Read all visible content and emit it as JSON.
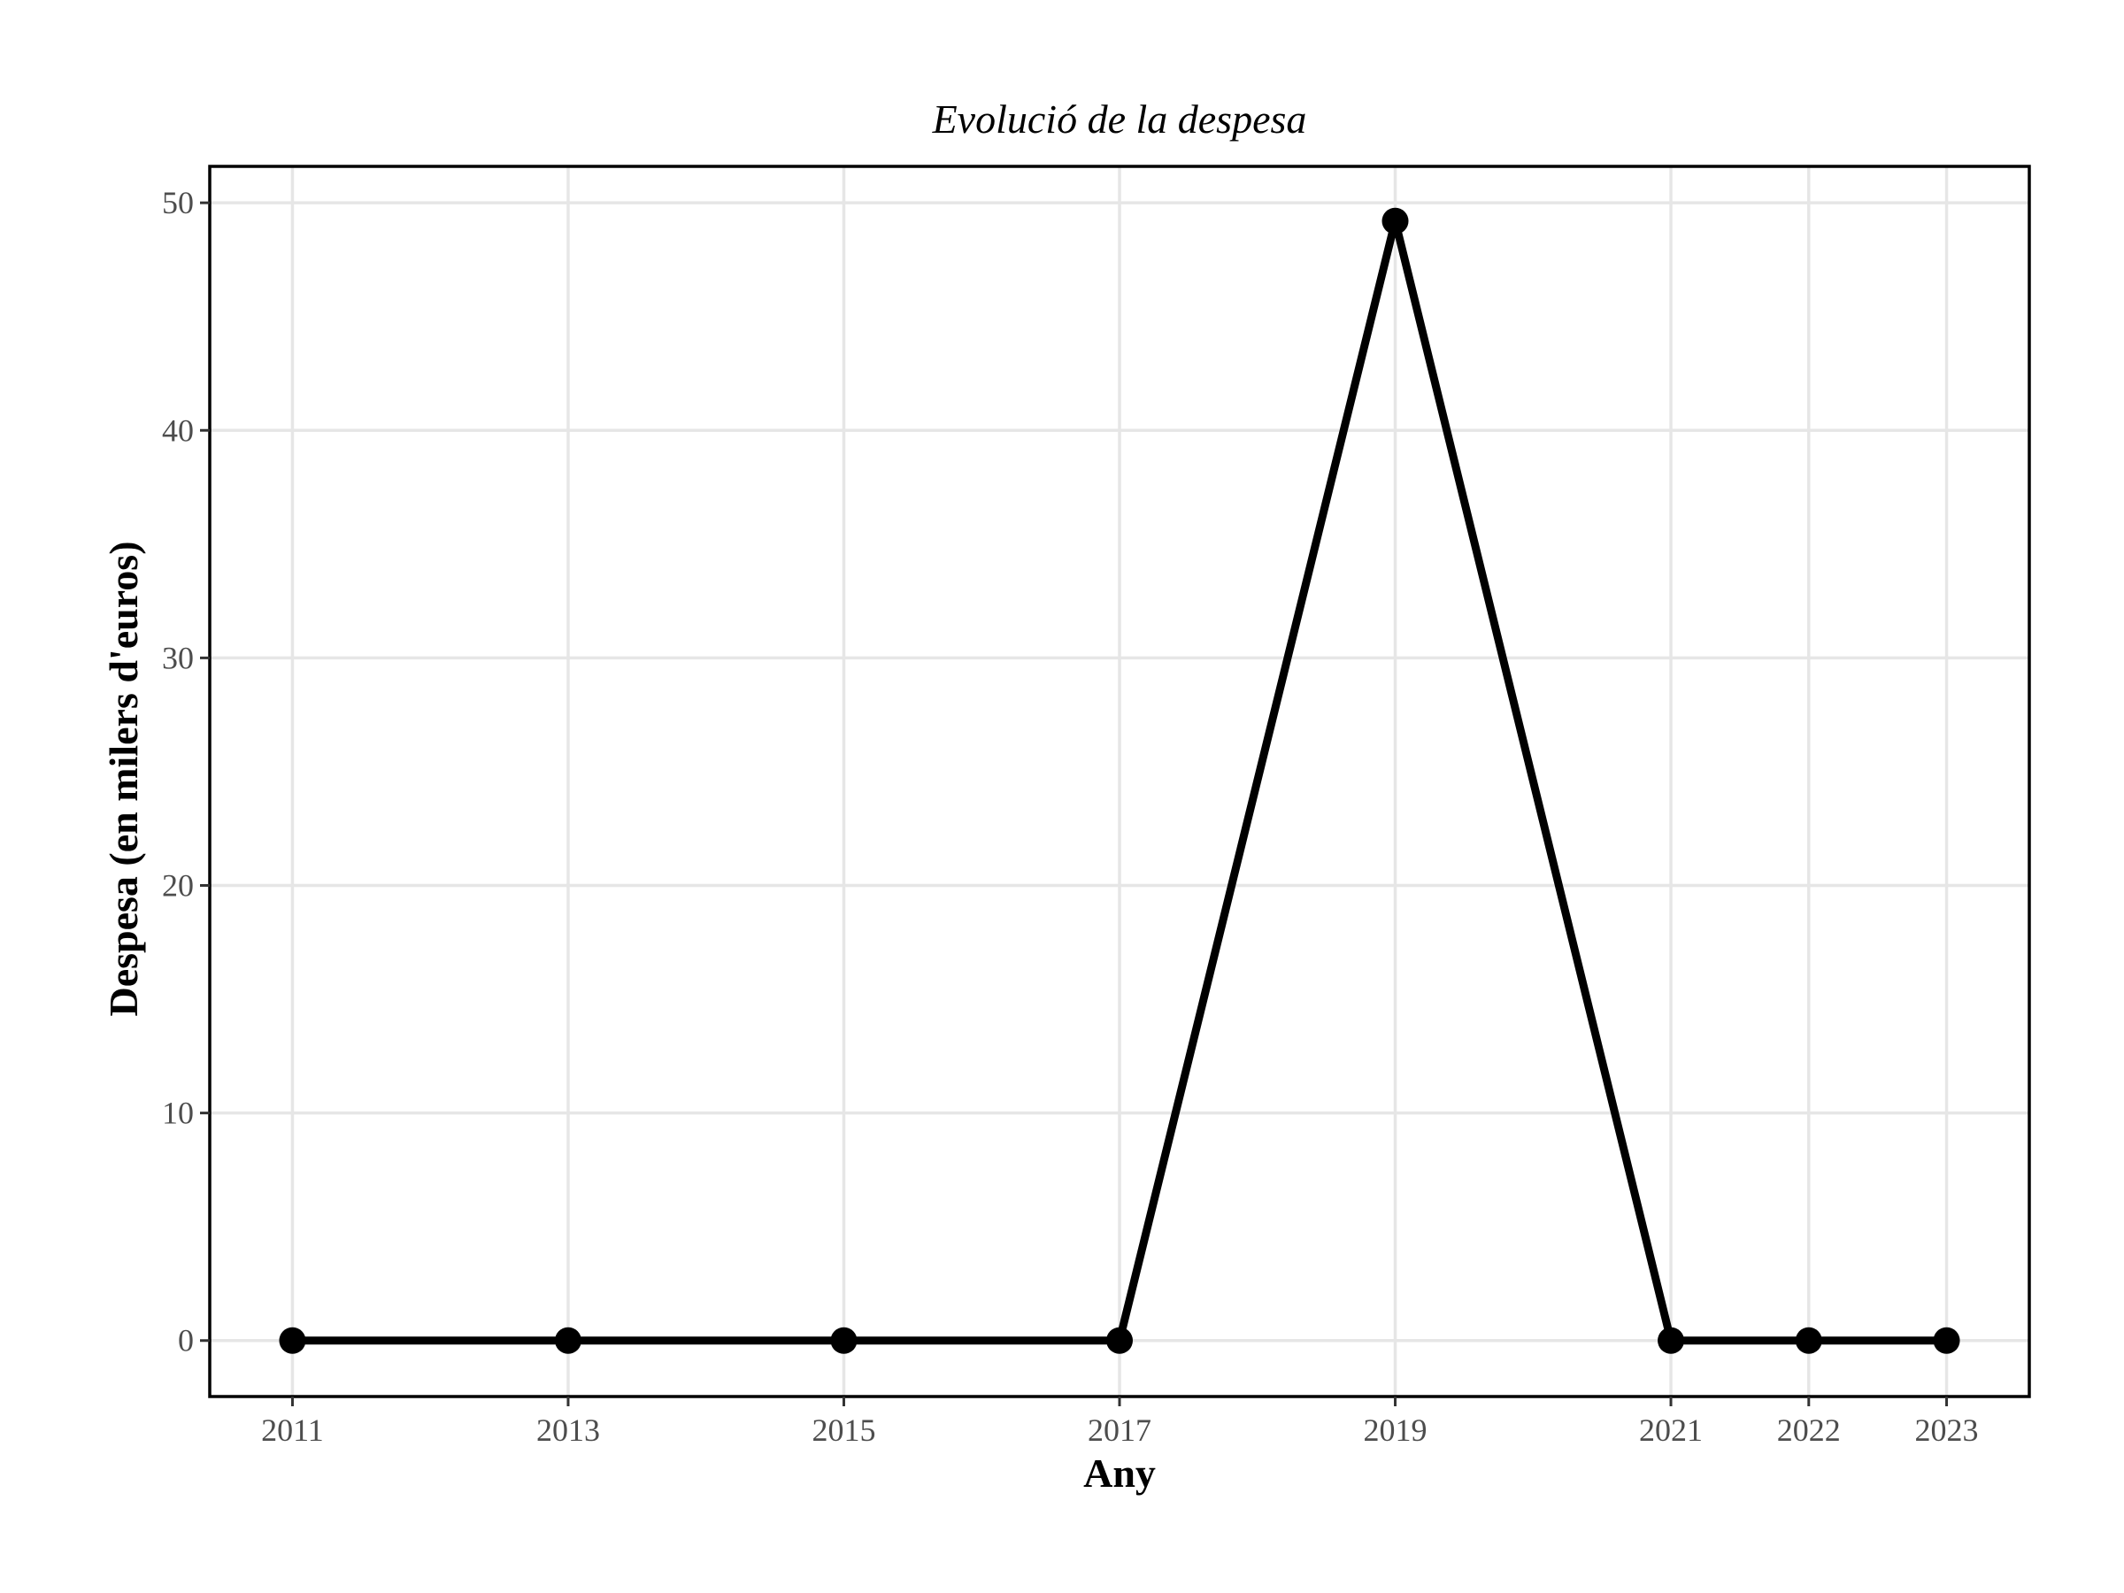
{
  "chart_data": {
    "type": "line",
    "title": "Evolució de la despesa",
    "xlabel": "Any",
    "ylabel": "Despesa (en milers d'euros)",
    "x": [
      2011,
      2013,
      2015,
      2017,
      2019,
      2021,
      2022,
      2023
    ],
    "values": [
      0,
      0,
      0,
      0,
      49.2,
      0,
      0,
      0
    ],
    "xticks": [
      2011,
      2013,
      2015,
      2017,
      2019,
      2021,
      2022,
      2023
    ],
    "yticks": [
      0,
      10,
      20,
      30,
      40,
      50
    ],
    "xlim": [
      2010.4,
      2023.6
    ],
    "ylim": [
      -2.46,
      51.6
    ],
    "grid": true,
    "legend": "none",
    "colors": {
      "line": "#000000",
      "grid": "#e6e6e6",
      "tick_text": "#4d4d4d"
    }
  }
}
